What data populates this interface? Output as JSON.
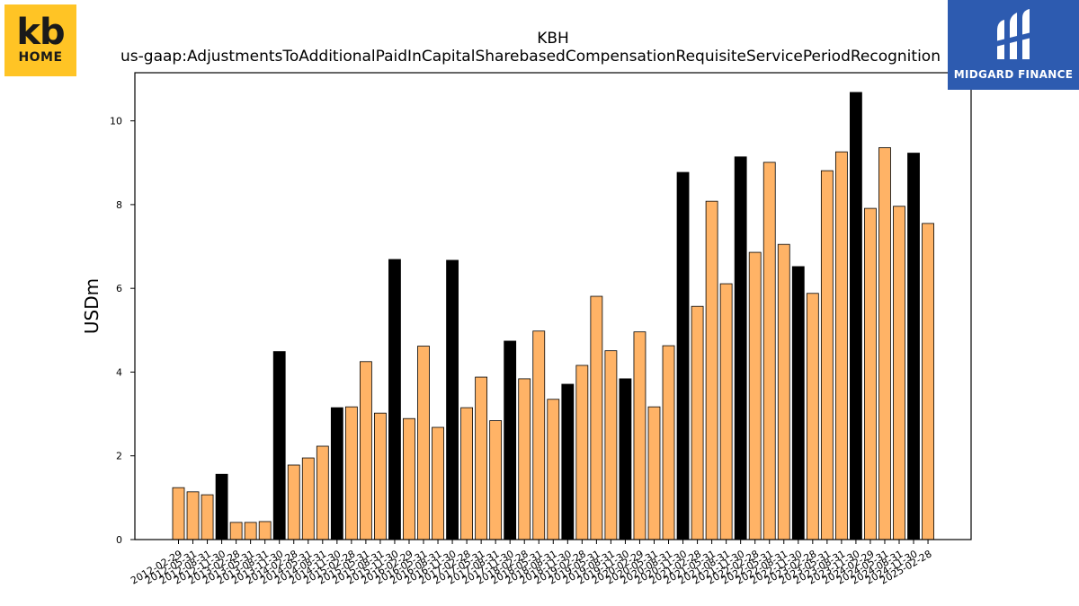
{
  "logos": {
    "left": {
      "icon": "kb-home-logo",
      "line1": "kb",
      "line2": "HOME"
    },
    "right": {
      "icon": "midgard-finance-logo",
      "text": "MIDGARD FINANCE"
    }
  },
  "chart_data": {
    "type": "bar",
    "title": "KBH",
    "subtitle": "us-gaap:AdjustmentsToAdditionalPaidInCapitalSharebasedCompensationRequisiteServicePeriodRecognition",
    "xlabel": "",
    "ylabel": "USDm",
    "ylim": [
      0,
      11.15
    ],
    "yticks": [
      0,
      2,
      4,
      6,
      8,
      10
    ],
    "grid": false,
    "legend": "none",
    "colors": {
      "quarter": "#ffb366",
      "fiscal_year_end": "#000000",
      "edge": "#000000"
    },
    "categories": [
      "2012-02-29",
      "2012-05-31",
      "2012-08-31",
      "2012-11-30",
      "2013-02-28",
      "2013-05-31",
      "2013-08-31",
      "2013-11-30",
      "2014-02-28",
      "2014-05-31",
      "2014-08-31",
      "2014-11-30",
      "2015-02-28",
      "2015-05-31",
      "2015-08-31",
      "2015-11-30",
      "2016-02-29",
      "2016-05-31",
      "2016-08-31",
      "2016-11-30",
      "2017-02-28",
      "2017-05-31",
      "2017-08-31",
      "2017-11-30",
      "2018-02-28",
      "2018-05-31",
      "2018-08-31",
      "2018-11-30",
      "2019-02-28",
      "2019-05-31",
      "2019-08-31",
      "2019-11-30",
      "2020-02-29",
      "2020-05-31",
      "2020-08-31",
      "2020-11-30",
      "2021-02-28",
      "2021-05-31",
      "2021-08-31",
      "2021-11-30",
      "2022-02-28",
      "2022-05-31",
      "2022-08-31",
      "2022-11-30",
      "2023-02-28",
      "2023-05-31",
      "2023-08-31",
      "2023-11-30",
      "2024-02-29",
      "2024-05-31",
      "2024-08-31",
      "2024-11-30",
      "2025-02-28"
    ],
    "values": [
      1.24,
      1.14,
      1.07,
      1.56,
      0.41,
      0.41,
      0.43,
      4.49,
      1.78,
      1.95,
      2.23,
      3.15,
      3.17,
      4.25,
      3.02,
      6.69,
      2.89,
      4.62,
      2.68,
      6.67,
      3.15,
      3.88,
      2.84,
      4.74,
      3.84,
      4.98,
      3.35,
      3.71,
      4.16,
      5.81,
      4.51,
      3.84,
      4.96,
      3.17,
      4.63,
      8.77,
      5.57,
      8.08,
      6.11,
      9.14,
      6.86,
      9.01,
      7.05,
      6.52,
      5.88,
      8.81,
      9.26,
      10.68,
      7.91,
      9.36,
      7.96,
      9.23,
      7.55
    ],
    "highlight": [
      false,
      false,
      false,
      true,
      false,
      false,
      false,
      true,
      false,
      false,
      false,
      true,
      false,
      false,
      false,
      true,
      false,
      false,
      false,
      true,
      false,
      false,
      false,
      true,
      false,
      false,
      false,
      true,
      false,
      false,
      false,
      true,
      false,
      false,
      false,
      true,
      false,
      false,
      false,
      true,
      false,
      false,
      false,
      true,
      false,
      false,
      false,
      true,
      false,
      false,
      false,
      true,
      false
    ]
  }
}
